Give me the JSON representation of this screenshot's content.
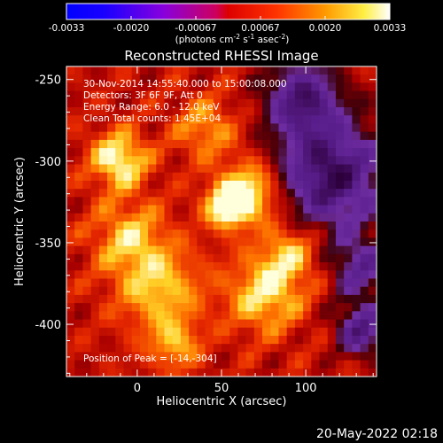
{
  "chart_data": {
    "type": "heatmap",
    "colorbar": {
      "colormap": "hot",
      "range": [
        -0.0033,
        0.0033
      ],
      "tick_labels": [
        "-0.0033",
        "-0.0020",
        "-0.00067",
        "0.00067",
        "0.0020",
        "0.0033"
      ],
      "unit_text": "(photons cm",
      "unit_sup1": "-2",
      "unit_mid": " s",
      "unit_sup2": "-1",
      "unit_end": " asec",
      "unit_sup3": "-2",
      "unit_close": ")"
    },
    "title": "Reconstructed RHESSI Image",
    "xlabel": "Heliocentric X (arcsec)",
    "ylabel": "Heliocentric Y (arcsec)",
    "xlim": [
      -42,
      142
    ],
    "ylim": [
      -432,
      -242
    ],
    "x_ticks": [
      0,
      50,
      100
    ],
    "x_tick_labels": [
      "0",
      "50",
      "100"
    ],
    "y_ticks": [
      -250,
      -300,
      -350,
      -400
    ],
    "y_tick_labels": [
      "-250",
      "-300",
      "-350",
      "-400"
    ],
    "annotations": [
      "30-Nov-2014 14:55:40.000 to 15:00:08.000",
      "Detectors: 3F 6F 9F, Att 0",
      "Energy Range: 6.0 - 12.0 keV",
      "Clean     Total counts: 1.45E+04"
    ],
    "peak_label": "Position of Peak = [-14,-304]",
    "peak_position": [
      -14,
      -304
    ]
  },
  "footer": {
    "date": "20-May-2022 02:18"
  }
}
